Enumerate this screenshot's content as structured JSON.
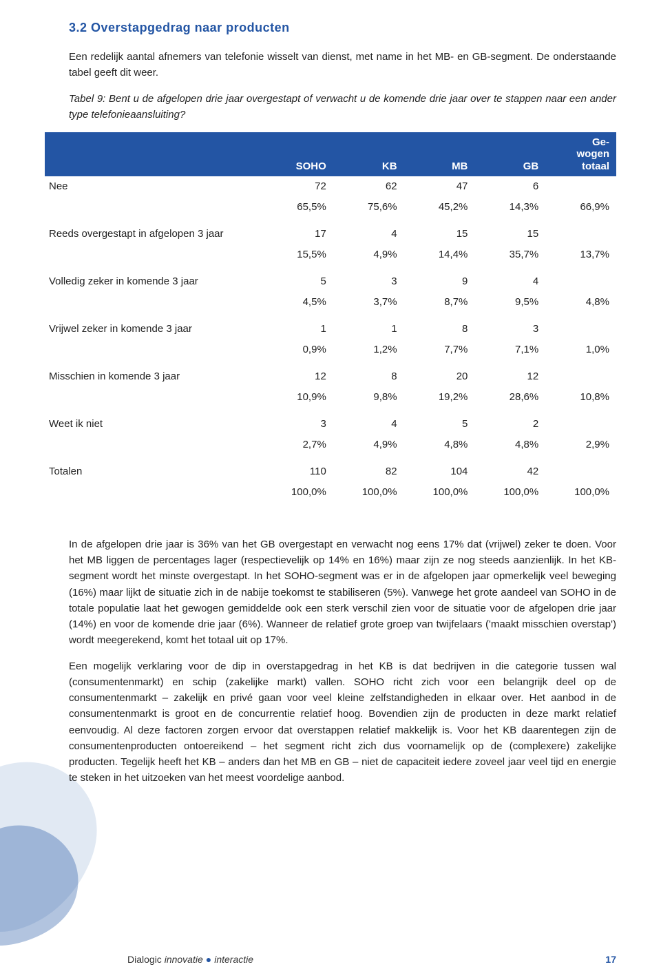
{
  "heading": "3.2 Overstapgedrag naar producten",
  "intro": "Een redelijk aantal afnemers van telefonie wisselt van dienst, met name in het MB- en GB-segment. De onderstaande tabel geeft dit weer.",
  "table_caption": "Tabel 9: Bent u de afgelopen drie jaar overgestapt of verwacht u de komende drie jaar over te stappen naar een ander type telefonieaansluiting?",
  "table": {
    "header_bg": "#2355A4",
    "header_color": "#ffffff",
    "columns": [
      "",
      "SOHO",
      "KB",
      "MB",
      "GB",
      "Ge-\nwogen\ntotaal"
    ],
    "rows": [
      {
        "label": "Nee",
        "v": [
          "72",
          "62",
          "47",
          "6",
          ""
        ]
      },
      {
        "pct": true,
        "v": [
          "65,5%",
          "75,6%",
          "45,2%",
          "14,3%",
          "66,9%"
        ]
      },
      {
        "label": "Reeds overgestapt in afgelopen 3 jaar",
        "v": [
          "17",
          "4",
          "15",
          "15",
          ""
        ]
      },
      {
        "pct": true,
        "v": [
          "15,5%",
          "4,9%",
          "14,4%",
          "35,7%",
          "13,7%"
        ]
      },
      {
        "label": "Volledig zeker in komende 3 jaar",
        "v": [
          "5",
          "3",
          "9",
          "4",
          ""
        ]
      },
      {
        "pct": true,
        "v": [
          "4,5%",
          "3,7%",
          "8,7%",
          "9,5%",
          "4,8%"
        ]
      },
      {
        "label": "Vrijwel zeker in komende 3 jaar",
        "v": [
          "1",
          "1",
          "8",
          "3",
          ""
        ]
      },
      {
        "pct": true,
        "v": [
          "0,9%",
          "1,2%",
          "7,7%",
          "7,1%",
          "1,0%"
        ]
      },
      {
        "label": "Misschien in komende 3 jaar",
        "v": [
          "12",
          "8",
          "20",
          "12",
          ""
        ]
      },
      {
        "pct": true,
        "v": [
          "10,9%",
          "9,8%",
          "19,2%",
          "28,6%",
          "10,8%"
        ]
      },
      {
        "label": "Weet ik niet",
        "v": [
          "3",
          "4",
          "5",
          "2",
          ""
        ]
      },
      {
        "pct": true,
        "v": [
          "2,7%",
          "4,9%",
          "4,8%",
          "4,8%",
          "2,9%"
        ]
      },
      {
        "label": "Totalen",
        "v": [
          "110",
          "82",
          "104",
          "42",
          ""
        ]
      },
      {
        "pct": true,
        "v": [
          "100,0%",
          "100,0%",
          "100,0%",
          "100,0%",
          "100,0%"
        ]
      }
    ]
  },
  "para1": "In de afgelopen drie jaar is 36% van het GB overgestapt en verwacht nog eens 17% dat (vrijwel) zeker te doen. Voor het MB liggen de percentages lager (respectievelijk op 14% en 16%) maar zijn ze nog steeds aanzienlijk. In het KB-segment wordt het minste overgestapt. In het SOHO-segment was er in de afgelopen jaar opmerkelijk veel beweging (16%) maar lijkt de situatie zich in de nabije toekomst te stabiliseren (5%). Vanwege het grote aandeel van SOHO in de totale populatie laat het gewogen gemiddelde ook een sterk verschil zien voor de situatie voor de afgelopen drie jaar (14%) en voor de komende drie jaar (6%). Wanneer de relatief grote groep van twijfelaars ('maakt misschien overstap') wordt meegerekend, komt het totaal uit op 17%.",
  "para2": "Een mogelijk verklaring voor de dip in overstapgedrag in het KB is dat bedrijven in die categorie tussen wal (consumentenmarkt) en schip (zakelijke markt) vallen. SOHO richt zich voor een belangrijk deel op de consumentenmarkt – zakelijk en privé gaan voor veel kleine zelfstandigheden in elkaar over. Het aanbod in de consumentenmarkt is groot en de concurrentie relatief hoog. Bovendien zijn de producten in deze markt relatief eenvoudig. Al deze factoren zorgen ervoor dat overstappen relatief makkelijk is. Voor het KB daarentegen zijn de consumentenproducten ontoereikend – het segment richt zich dus voornamelijk op de (complexere) zakelijke producten. Tegelijk heeft het KB – anders dan het MB en GB – niet de capaciteit iedere zoveel jaar veel tijd en energie te steken in het uitzoeken van het meest voordelige aanbod.",
  "footer": {
    "brand_plain": "Dialogic ",
    "brand_italic1": "innovatie",
    "brand_dot": "●",
    "brand_italic2": "interactie",
    "page_number": "17"
  },
  "deco": {
    "fill1": "#c9d7ea",
    "fill2": "#2355A4",
    "opacity1": 0.55,
    "opacity2": 0.35
  }
}
